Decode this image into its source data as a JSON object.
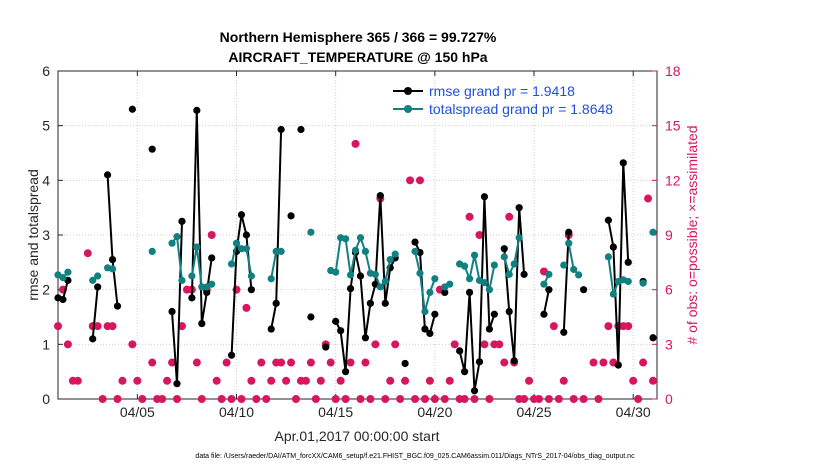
{
  "chart_data": {
    "type": "line",
    "title_line1": "Northern Hemisphere 365 / 366 = 99.727%",
    "title_line2": "AIRCRAFT_TEMPERATURE @ 150 hPa",
    "xlabel": "Apr.01,2017 00:00:00 start",
    "ylabel_left": "rmse and totalspread",
    "ylabel_right": "# of obs: o=possible; ×=assimilated",
    "footnote": "data file: /Users/raeder/DAI/ATM_forcXX/CAM6_setup/f.e21.FHIST_BGC.f09_025.CAM6assim.011/Diags_NTrS_2017-04/obs_diag_output.nc",
    "xlim": [
      1,
      31.2
    ],
    "ylim_left": [
      0,
      6
    ],
    "ylim_right": [
      0,
      18
    ],
    "xticks": [
      5,
      10,
      15,
      20,
      25,
      30
    ],
    "xtick_labels": [
      "04/05",
      "04/10",
      "04/15",
      "04/20",
      "04/25",
      "04/30"
    ],
    "yticks_left": [
      0,
      1,
      2,
      3,
      4,
      5,
      6
    ],
    "yticks_right": [
      0,
      3,
      6,
      9,
      12,
      15,
      18
    ],
    "colors": {
      "rmse": "#000000",
      "spread": "#128080",
      "obs": "#d6175f",
      "legend_text": "#1f4fe0"
    },
    "series": [
      {
        "name": "rmse grand pr = 1.9418",
        "segments": [
          [
            [
              1.0,
              1.85
            ],
            [
              1.25,
              1.82
            ],
            [
              1.5,
              2.17
            ]
          ],
          [
            [
              2.75,
              1.1
            ],
            [
              3.0,
              2.05
            ]
          ],
          [
            [
              3.5,
              4.1
            ],
            [
              3.75,
              2.55
            ],
            [
              4.0,
              1.7
            ]
          ],
          [
            [
              4.75,
              5.3
            ]
          ],
          [
            [
              5.75,
              4.57
            ]
          ],
          [
            [
              6.75,
              1.6
            ],
            [
              7.0,
              0.28
            ],
            [
              7.25,
              3.25
            ]
          ],
          [
            [
              7.75,
              1.85
            ],
            [
              8.0,
              5.28
            ],
            [
              8.25,
              1.38
            ],
            [
              8.5,
              1.95
            ],
            [
              8.75,
              2.58
            ]
          ],
          [
            [
              9.75,
              0.8
            ],
            [
              10.0,
              2.7
            ],
            [
              10.25,
              3.37
            ],
            [
              10.5,
              3.0
            ],
            [
              10.75,
              2.0
            ]
          ],
          [
            [
              11.75,
              1.28
            ],
            [
              12.0,
              1.75
            ],
            [
              12.25,
              4.93
            ]
          ],
          [
            [
              12.75,
              3.35
            ]
          ],
          [
            [
              13.25,
              4.93
            ]
          ],
          [
            [
              13.75,
              1.5
            ]
          ],
          [
            [
              14.5,
              0.95
            ]
          ],
          [
            [
              15.0,
              1.42
            ],
            [
              15.25,
              1.25
            ],
            [
              15.5,
              0.5
            ],
            [
              15.75,
              2.02
            ],
            [
              16.0,
              2.68
            ],
            [
              16.25,
              2.25
            ],
            [
              16.5,
              1.12
            ],
            [
              16.75,
              1.75
            ],
            [
              17.0,
              2.1
            ],
            [
              17.25,
              3.72
            ],
            [
              17.5,
              1.75
            ],
            [
              17.75,
              2.4
            ],
            [
              18.0,
              2.58
            ]
          ],
          [
            [
              18.5,
              0.65
            ]
          ],
          [
            [
              19.0,
              2.87
            ],
            [
              19.25,
              2.68
            ],
            [
              19.5,
              1.28
            ],
            [
              19.75,
              1.2
            ],
            [
              20.0,
              1.55
            ]
          ],
          [
            [
              20.5,
              1.95
            ]
          ],
          [
            [
              21.25,
              0.88
            ],
            [
              21.5,
              0.5
            ],
            [
              21.75,
              1.95
            ],
            [
              22.0,
              0.15
            ],
            [
              22.25,
              0.68
            ],
            [
              22.5,
              3.7
            ],
            [
              22.75,
              1.28
            ],
            [
              23.0,
              1.55
            ]
          ],
          [
            [
              23.5,
              2.75
            ],
            [
              23.75,
              1.6
            ],
            [
              24.0,
              0.7
            ],
            [
              24.25,
              3.5
            ],
            [
              24.5,
              2.28
            ]
          ],
          [
            [
              25.5,
              1.55
            ],
            [
              25.75,
              2.0
            ]
          ],
          [
            [
              26.5,
              1.22
            ],
            [
              26.75,
              3.05
            ]
          ],
          [
            [
              27.5,
              2.0
            ]
          ],
          [
            [
              28.75,
              3.27
            ],
            [
              29.0,
              2.78
            ],
            [
              29.25,
              0.62
            ],
            [
              29.5,
              4.32
            ],
            [
              29.75,
              2.5
            ]
          ],
          [
            [
              30.5,
              2.15
            ]
          ],
          [
            [
              31.0,
              1.12
            ]
          ]
        ]
      },
      {
        "name": "totalspread grand pr = 1.8648",
        "segments": [
          [
            [
              1.0,
              2.27
            ],
            [
              1.25,
              2.22
            ],
            [
              1.5,
              2.32
            ]
          ],
          [
            [
              2.75,
              2.17
            ],
            [
              3.0,
              2.25
            ]
          ],
          [
            [
              3.5,
              2.4
            ],
            [
              3.75,
              2.38
            ]
          ],
          [
            [
              5.75,
              2.7
            ]
          ],
          [
            [
              6.75,
              2.85
            ],
            [
              7.0,
              2.97
            ],
            [
              7.25,
              2.17
            ]
          ],
          [
            [
              7.75,
              2.25
            ],
            [
              8.0,
              2.78
            ],
            [
              8.25,
              2.05
            ],
            [
              8.5,
              2.05
            ],
            [
              8.75,
              2.1
            ]
          ],
          [
            [
              9.75,
              2.47
            ],
            [
              10.0,
              2.85
            ],
            [
              10.25,
              2.75
            ],
            [
              10.5,
              2.75
            ],
            [
              10.75,
              2.25
            ]
          ],
          [
            [
              11.75,
              2.2
            ],
            [
              12.0,
              2.7
            ],
            [
              12.25,
              2.7
            ]
          ],
          [
            [
              13.75,
              3.05
            ]
          ],
          [
            [
              14.75,
              2.35
            ]
          ],
          [
            [
              15.0,
              2.32
            ],
            [
              15.25,
              2.95
            ],
            [
              15.5,
              2.93
            ],
            [
              15.75,
              2.27
            ],
            [
              16.0,
              2.72
            ],
            [
              16.25,
              2.95
            ],
            [
              16.5,
              2.7
            ],
            [
              16.75,
              2.3
            ],
            [
              17.0,
              2.28
            ],
            [
              17.25,
              2.05
            ],
            [
              17.5,
              2.15
            ],
            [
              17.75,
              2.55
            ],
            [
              18.0,
              2.65
            ]
          ],
          [
            [
              19.0,
              2.7
            ],
            [
              19.25,
              2.3
            ],
            [
              19.5,
              1.6
            ],
            [
              19.75,
              1.95
            ],
            [
              20.0,
              2.2
            ]
          ],
          [
            [
              20.5,
              2.05
            ],
            [
              20.75,
              2.1
            ]
          ],
          [
            [
              21.25,
              2.47
            ],
            [
              21.5,
              2.43
            ],
            [
              21.75,
              2.2
            ],
            [
              22.0,
              2.63
            ],
            [
              22.25,
              2.17
            ],
            [
              22.5,
              2.13
            ],
            [
              22.75,
              2.0
            ],
            [
              23.0,
              2.45
            ]
          ],
          [
            [
              23.5,
              2.6
            ],
            [
              23.75,
              2.28
            ],
            [
              24.0,
              2.47
            ],
            [
              24.25,
              2.95
            ]
          ],
          [
            [
              25.5,
              2.1
            ],
            [
              25.75,
              2.28
            ]
          ],
          [
            [
              26.5,
              2.45
            ]
          ],
          [
            [
              26.75,
              2.85
            ],
            [
              27.0,
              2.37
            ],
            [
              27.25,
              2.27
            ]
          ],
          [
            [
              28.75,
              2.6
            ],
            [
              29.0,
              1.92
            ],
            [
              29.25,
              2.15
            ],
            [
              29.5,
              2.18
            ],
            [
              29.75,
              2.15
            ]
          ],
          [
            [
              30.5,
              2.12
            ]
          ],
          [
            [
              31.0,
              3.05
            ]
          ]
        ]
      }
    ],
    "obs_possible": [
      [
        1.0,
        4
      ],
      [
        1.25,
        6
      ],
      [
        1.5,
        3
      ],
      [
        1.75,
        1
      ],
      [
        2.0,
        1
      ],
      [
        2.5,
        8
      ],
      [
        2.75,
        4
      ],
      [
        3.0,
        4
      ],
      [
        3.25,
        0
      ],
      [
        3.5,
        4
      ],
      [
        3.75,
        4
      ],
      [
        4.0,
        0
      ],
      [
        4.25,
        1
      ],
      [
        4.75,
        3
      ],
      [
        5.0,
        1
      ],
      [
        5.25,
        0
      ],
      [
        5.75,
        2
      ],
      [
        6.0,
        0
      ],
      [
        6.25,
        0
      ],
      [
        6.5,
        1
      ],
      [
        6.75,
        2
      ],
      [
        7.0,
        0
      ],
      [
        7.25,
        4
      ],
      [
        7.5,
        6
      ],
      [
        7.75,
        6
      ],
      [
        8.0,
        2
      ],
      [
        8.25,
        0
      ],
      [
        8.5,
        6
      ],
      [
        8.75,
        9
      ],
      [
        9.0,
        1
      ],
      [
        9.25,
        0
      ],
      [
        9.5,
        2
      ],
      [
        9.75,
        0
      ],
      [
        10.0,
        6
      ],
      [
        10.25,
        0
      ],
      [
        10.5,
        5
      ],
      [
        10.75,
        1
      ],
      [
        11.0,
        0
      ],
      [
        11.25,
        2
      ],
      [
        11.5,
        0
      ],
      [
        11.75,
        1
      ],
      [
        12.0,
        2
      ],
      [
        12.25,
        2
      ],
      [
        12.5,
        1
      ],
      [
        12.75,
        2
      ],
      [
        13.0,
        0
      ],
      [
        13.25,
        1
      ],
      [
        13.5,
        1
      ],
      [
        13.75,
        2
      ],
      [
        14.0,
        0
      ],
      [
        14.25,
        1
      ],
      [
        14.5,
        3
      ],
      [
        14.75,
        2
      ],
      [
        15.0,
        0
      ],
      [
        15.25,
        1
      ],
      [
        15.5,
        0
      ],
      [
        15.75,
        2
      ],
      [
        16.0,
        14
      ],
      [
        16.25,
        0
      ],
      [
        16.5,
        2
      ],
      [
        16.75,
        0
      ],
      [
        17.0,
        3
      ],
      [
        17.25,
        11
      ],
      [
        17.5,
        0
      ],
      [
        17.75,
        1
      ],
      [
        18.0,
        3
      ],
      [
        18.25,
        0
      ],
      [
        18.5,
        1
      ],
      [
        18.75,
        12
      ],
      [
        19.0,
        0
      ],
      [
        19.25,
        12
      ],
      [
        19.5,
        0
      ],
      [
        19.75,
        1
      ],
      [
        20.0,
        0
      ],
      [
        20.25,
        6
      ],
      [
        20.5,
        0
      ],
      [
        20.75,
        1
      ],
      [
        21.0,
        3
      ],
      [
        21.25,
        0
      ],
      [
        21.5,
        0
      ],
      [
        21.75,
        10
      ],
      [
        22.0,
        0
      ],
      [
        22.25,
        9
      ],
      [
        22.5,
        3
      ],
      [
        22.75,
        0
      ],
      [
        23.0,
        3
      ],
      [
        23.25,
        3
      ],
      [
        23.5,
        2
      ],
      [
        23.75,
        10
      ],
      [
        24.0,
        2
      ],
      [
        24.25,
        0
      ],
      [
        24.5,
        0
      ],
      [
        24.75,
        1
      ],
      [
        25.0,
        0
      ],
      [
        25.25,
        0
      ],
      [
        25.5,
        7
      ],
      [
        25.75,
        0
      ],
      [
        26.0,
        4
      ],
      [
        26.25,
        0
      ],
      [
        26.5,
        1
      ],
      [
        26.75,
        9
      ],
      [
        27.0,
        0
      ],
      [
        27.5,
        0
      ],
      [
        28.0,
        2
      ],
      [
        28.25,
        0
      ],
      [
        28.5,
        2
      ],
      [
        28.75,
        4
      ],
      [
        29.0,
        2
      ],
      [
        29.25,
        4
      ],
      [
        29.5,
        4
      ],
      [
        29.75,
        4
      ],
      [
        30.0,
        1
      ],
      [
        30.25,
        0
      ],
      [
        30.5,
        2
      ],
      [
        30.75,
        11
      ],
      [
        31.0,
        1
      ]
    ]
  }
}
